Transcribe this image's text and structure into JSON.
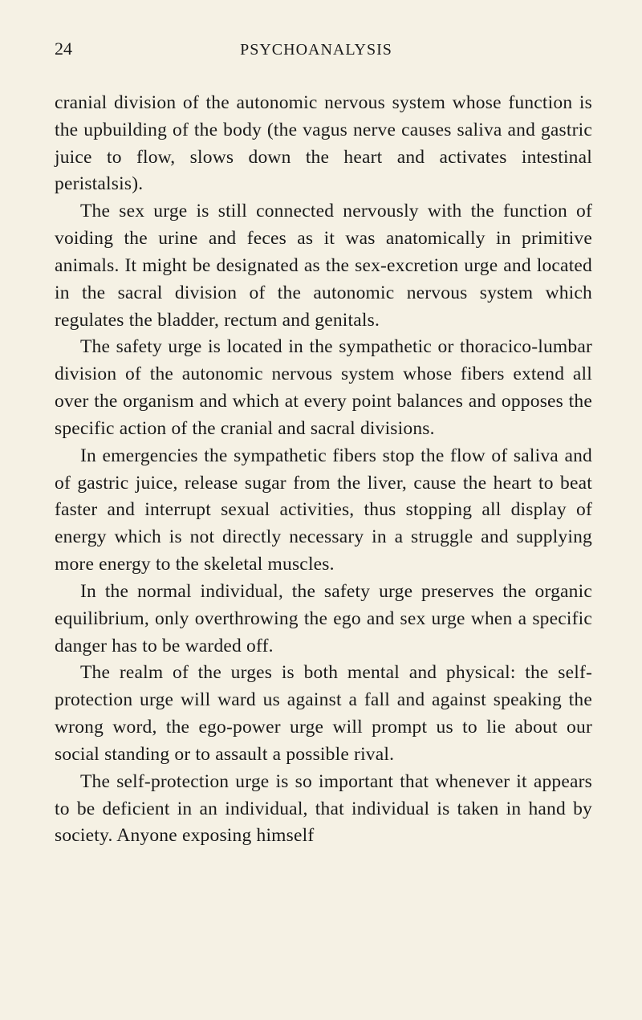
{
  "page": {
    "number": "24",
    "running_title": "PSYCHOANALYSIS",
    "background_color": "#f5f1e4",
    "text_color": "#1a1a1a",
    "font_family": "Georgia, Times New Roman, serif",
    "body_font_size": 23.5,
    "line_height": 1.44
  },
  "paragraphs": {
    "p1": "cranial division of the autonomic nervous system whose function is the upbuilding of the body (the vagus nerve causes saliva and gastric juice to flow, slows down the heart and activates intestinal peristalsis).",
    "p2": "The sex urge is still connected nervously with the func­tion of voiding the urine and feces as it was anatomically in primitive animals. It might be designated as the sex-excretion urge and located in the sacral division of the autonomic nervous system which regulates the bladder, rectum and genitals.",
    "p3": "The safety urge is located in the sympathetic or thorac­ico-lumbar division of the autonomic nervous system whose fibers extend all over the organism and which at every point balances and opposes the specific action of the cranial and sacral divisions.",
    "p4": "In emergencies the sympathetic fibers stop the flow of saliva and of gastric juice, release sugar from the liver, cause the heart to beat faster and interrupt sexual ac­tivities, thus stopping all display of energy which is not directly necessary in a struggle and supplying more en­ergy to the skeletal muscles.",
    "p5": "In the normal individual, the safety urge preserves the organic equilibrium, only overthrowing the ego and sex urge when a specific danger has to be warded off.",
    "p6": "The realm of the urges is both mental and physical: the self-protection urge will ward us against a fall and against speaking the wrong word, the ego-power urge will prompt us to lie about our social standing or to assault a possible rival.",
    "p7": "The self-protection urge is so important that whenever it appears to be deficient in an individual, that individual is taken in hand by society. Anyone exposing himself"
  }
}
